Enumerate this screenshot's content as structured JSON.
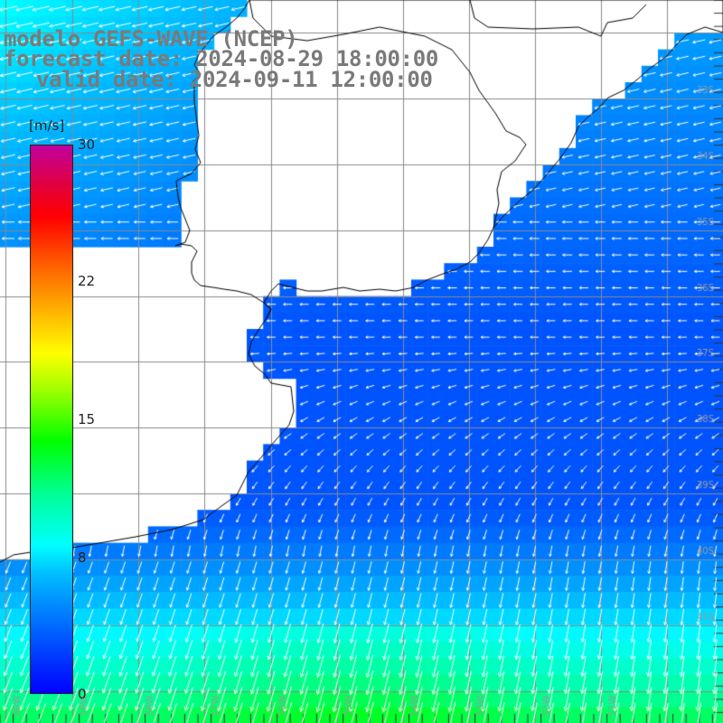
{
  "title": {
    "line1": "modelo GEFS-WAVE (NCEP)",
    "line2": "forecast date: 2024-08-29 18:00:00",
    "line3": "valid date: 2024-09-11 12:00:00"
  },
  "legend": {
    "unit": "[m/s]",
    "ticks": [
      "30",
      "22",
      "15",
      "8",
      "0"
    ],
    "tick_values": [
      30,
      22,
      15,
      8,
      0
    ],
    "colors": [
      "#0000ff",
      "#00c0ff",
      "#00ffff",
      "#00ff00",
      "#ffff00",
      "#ff0000",
      "#c000a0"
    ]
  },
  "lat_labels": [
    "33S",
    "34S",
    "35S",
    "36S",
    "37S",
    "38S",
    "39S",
    "40S",
    "41S"
  ],
  "lat_values": [
    33,
    34,
    35,
    36,
    37,
    38,
    39,
    40,
    41
  ],
  "lon_labels": [
    "60W",
    "59W",
    "58W",
    "57W",
    "56W",
    "55W",
    "54W",
    "53W",
    "52W",
    "51W"
  ],
  "lon_values": [
    60,
    59,
    58,
    57,
    56,
    55,
    54,
    53,
    52,
    51
  ],
  "colors": {
    "land": "#ffffff",
    "coast": "#000000",
    "grid": "#8a8a8a",
    "arrow": "#ffffff"
  }
}
